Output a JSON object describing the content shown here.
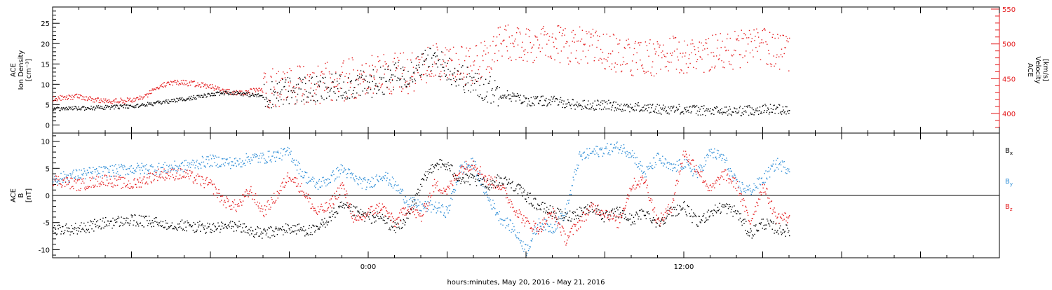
{
  "chart_data": [
    {
      "type": "scatter",
      "panel": "top",
      "ylabel_lines": [
        "ACE",
        "Ion Density",
        "[cm⁻³]"
      ],
      "y2label_lines": [
        "ACE",
        "Velocity",
        "[km/s]"
      ],
      "ylim": [
        -2,
        29
      ],
      "y2lim": [
        372,
        553
      ],
      "yticks": [
        0,
        5,
        10,
        15,
        20,
        25
      ],
      "y2ticks": [
        400,
        450,
        500,
        550
      ],
      "xlim_hours": [
        -12,
        24
      ],
      "grid": false,
      "series": [
        {
          "axis": "left",
          "color": "#000000",
          "x": [
            -12,
            -10.5,
            -9,
            -8,
            -7.5,
            -6.5,
            -6,
            -5.5,
            -5,
            -4.5,
            -4,
            -3.5,
            -3,
            -2.5,
            -2,
            -1.5,
            -1,
            -0.5,
            0,
            0.5,
            1,
            1.5,
            2,
            2.5,
            3,
            3.5,
            4,
            4.5,
            5,
            6,
            7,
            8,
            9,
            10,
            11,
            12,
            13,
            14,
            15,
            16
          ],
          "y": [
            4,
            4.3,
            4.7,
            5.5,
            6,
            7,
            7.5,
            8,
            8,
            7.5,
            7.2,
            8,
            8.5,
            9,
            8.5,
            9,
            9.5,
            10,
            10,
            11,
            12,
            13,
            15,
            16,
            14,
            12,
            10,
            9,
            8,
            6,
            6,
            5,
            5,
            4.5,
            4,
            4,
            3.5,
            3.5,
            4,
            4
          ]
        },
        {
          "axis": "right",
          "color": "#e41a1c",
          "x": [
            -12,
            -11,
            -10,
            -9,
            -8.5,
            -8,
            -7.5,
            -7,
            -6.5,
            -6,
            -5.5,
            -5,
            -4.5,
            -4,
            -3.5,
            -3,
            -2.5,
            -2,
            -1.5,
            -1,
            -0.5,
            0,
            0.5,
            1,
            1.5,
            2,
            2.5,
            3,
            3.5,
            4,
            4.5,
            5,
            5.5,
            6,
            6.5,
            7,
            7.5,
            8,
            8.5,
            9,
            9.5,
            10,
            10.5,
            11,
            11.5,
            12,
            12.5,
            13,
            13.5,
            14,
            14.5,
            15,
            15.5,
            16
          ],
          "y": [
            422,
            425,
            418,
            420,
            425,
            440,
            445,
            445,
            443,
            440,
            432,
            430,
            432,
            435,
            437,
            438,
            440,
            443,
            445,
            448,
            452,
            455,
            460,
            458,
            458,
            465,
            475,
            470,
            468,
            472,
            480,
            505,
            500,
            495,
            500,
            505,
            498,
            500,
            495,
            490,
            485,
            480,
            478,
            482,
            485,
            483,
            485,
            488,
            490,
            492,
            495,
            497,
            492,
            487
          ]
        }
      ]
    },
    {
      "type": "scatter",
      "panel": "bottom",
      "ylabel_lines": [
        "ACE",
        "B",
        "[nT]"
      ],
      "ylim": [
        -11.5,
        11.5
      ],
      "yticks": [
        -10,
        -5,
        0,
        5,
        10
      ],
      "zero_line": true,
      "xlabel": "hours:minutes, May 20, 2016 - May 21, 2016",
      "xticks": [
        {
          "hours": 0,
          "label": "0:00"
        },
        {
          "hours": 12,
          "label": "12:00"
        }
      ],
      "xlim_hours": [
        -12,
        24
      ],
      "legend_position": "right",
      "series": [
        {
          "name": "Bx",
          "color": "#000000",
          "x": [
            -12,
            -11,
            -10,
            -9,
            -8,
            -7,
            -6,
            -5,
            -4.5,
            -4,
            -3,
            -2,
            -1.5,
            -1,
            -0.5,
            0,
            0.5,
            1,
            1.5,
            2,
            2.5,
            3,
            3.5,
            4,
            4.5,
            5,
            5.5,
            6,
            6.5,
            7,
            7.5,
            8,
            8.5,
            9,
            9.5,
            10,
            10.5,
            11,
            11.5,
            12,
            12.5,
            13,
            13.5,
            14,
            14.5,
            15,
            15.5,
            16
          ],
          "y": [
            -6.3,
            -6,
            -5,
            -4.5,
            -5,
            -5.5,
            -6,
            -5.5,
            -6.5,
            -7,
            -6,
            -6.5,
            -4,
            -2,
            -3,
            -4,
            -4,
            -6,
            -4,
            2,
            6,
            5.5,
            3,
            3,
            2,
            3,
            2,
            0,
            -2,
            -3,
            -4,
            -3,
            -2,
            -4,
            -3,
            -4.5,
            -3,
            -5,
            -3,
            -2,
            -5,
            -3,
            -2,
            -3,
            -7,
            -5,
            -6,
            -6.5
          ]
        },
        {
          "name": "By",
          "color": "#2b8cd6",
          "x": [
            -12,
            -11,
            -10,
            -9,
            -8,
            -7,
            -6,
            -5,
            -4.5,
            -4,
            -3,
            -2.5,
            -2,
            -1.5,
            -1,
            -0.5,
            0,
            0.5,
            1,
            1.5,
            2,
            2.5,
            3,
            3.5,
            4,
            4.5,
            5,
            5.5,
            6,
            6.5,
            7,
            7.5,
            8,
            8.5,
            9,
            9.5,
            10,
            10.5,
            11,
            11.5,
            12,
            12.5,
            13,
            13.5,
            14,
            14.5,
            15,
            15.5,
            16
          ],
          "y": [
            3,
            4,
            4.5,
            5,
            5,
            5.5,
            6.5,
            6,
            7,
            7,
            8,
            4,
            2,
            3,
            5,
            3,
            2,
            4,
            2,
            -1,
            -2,
            -2,
            -3,
            5,
            6,
            0,
            -4,
            -6,
            -10,
            -5,
            -6,
            -3,
            7,
            8,
            8.5,
            9,
            8,
            4,
            7,
            5,
            6,
            4,
            8,
            7,
            2,
            1,
            3,
            6,
            5
          ]
        },
        {
          "name": "Bz",
          "color": "#e41a1c",
          "x": [
            -12,
            -11,
            -10,
            -9,
            -8,
            -7,
            -6,
            -5.5,
            -5,
            -4.5,
            -4,
            -3.5,
            -3,
            -2.5,
            -2,
            -1.5,
            -1,
            -0.5,
            0,
            0.5,
            1,
            1.5,
            2,
            2.5,
            3,
            3.5,
            4,
            4.5,
            5,
            5.5,
            6,
            6.5,
            7,
            7.5,
            8,
            8.5,
            9,
            9.5,
            10,
            10.5,
            11,
            11.5,
            12,
            12.5,
            13,
            13.5,
            14,
            14.5,
            15,
            15.5,
            16
          ],
          "y": [
            3,
            2,
            3,
            2,
            4,
            4,
            2,
            -1,
            -2,
            1,
            -3,
            0,
            4,
            1,
            -3,
            -2,
            2,
            -5,
            -3,
            -2,
            -5,
            -2,
            -4,
            2,
            1,
            5,
            6,
            3,
            2,
            -2,
            -5,
            -6,
            -3,
            -8,
            -5,
            -2,
            -3,
            -5,
            2,
            3,
            -5,
            -2,
            8,
            5,
            1,
            4,
            2,
            -5,
            2,
            -4,
            -4
          ]
        }
      ]
    }
  ]
}
